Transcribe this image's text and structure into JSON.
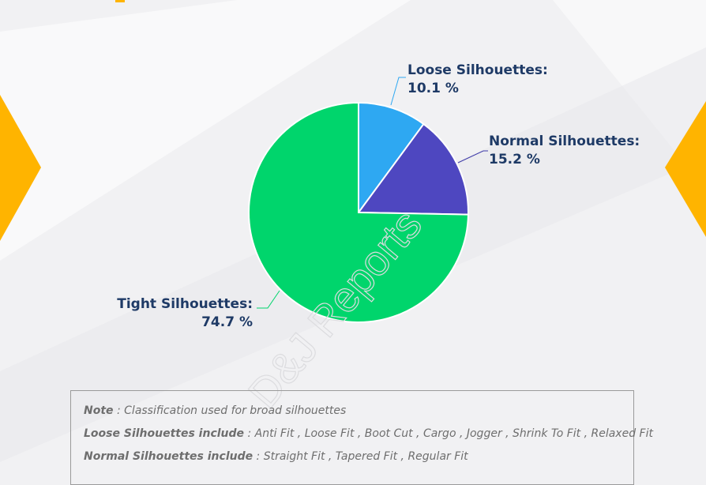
{
  "chart_data": {
    "type": "pie",
    "start_angle_deg": 0,
    "direction": "clockwise",
    "slices": [
      {
        "label": "Loose Silhouettes:",
        "value": 10.1,
        "value_label": "10.1 %",
        "color": "#2ea8f2",
        "leader_color": "#2ea8f2"
      },
      {
        "label": "Normal Silhouettes:",
        "value": 15.2,
        "value_label": "15.2 %",
        "color": "#4e47c0",
        "leader_color": "#3e3aa8"
      },
      {
        "label": "Tight Silhouettes:",
        "value": 74.7,
        "value_label": "74.7 %",
        "color": "#00d56c",
        "leader_color": "#00d56c"
      }
    ],
    "label_color": "#1e3a66"
  },
  "watermark": "D&J Reports",
  "note": {
    "line1_key": "Note",
    "line1_text": " : Classification used for broad silhouettes",
    "line2_key": "Loose Silhouettes include",
    "line2_text": " : Anti Fit , Loose Fit , Boot Cut , Cargo , Jogger , Shrink To Fit , Relaxed Fit",
    "line3_key": "Normal Silhouettes include",
    "line3_text": " : Straight Fit , Tapered Fit , Regular Fit"
  },
  "colors": {
    "accent": "#ffb400",
    "background": "#f1f1f3"
  }
}
